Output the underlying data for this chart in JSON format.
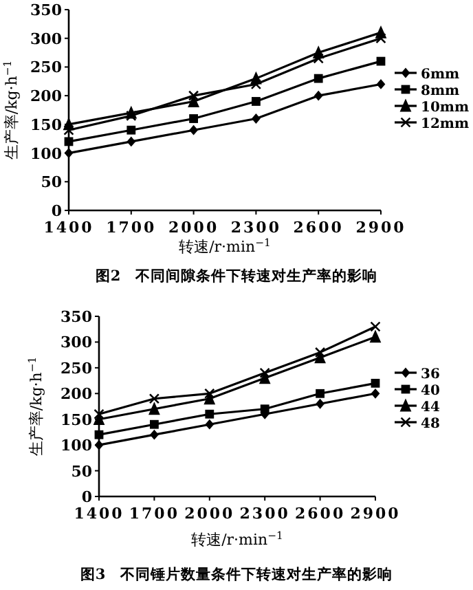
{
  "chart_data": [
    {
      "type": "line",
      "title": "图2　不同间隙条件下转速对生产率的影响",
      "xlabel": "转速/r·min$^{−1}$",
      "ylabel": "生产率/kg·h$^{−1}$",
      "categories": [
        "1400",
        "1700",
        "2000",
        "2300",
        "2600",
        "2900"
      ],
      "ylim": [
        0,
        350
      ],
      "yticks": [
        0,
        50,
        100,
        150,
        200,
        250,
        300,
        350
      ],
      "legend": "right",
      "grid": false,
      "line_style": "solid",
      "series": [
        {
          "name": "6mm",
          "color": "#000000",
          "marker": "diamond",
          "values": [
            100,
            120,
            140,
            160,
            200,
            220
          ]
        },
        {
          "name": "8mm",
          "color": "#000000",
          "marker": "square",
          "values": [
            120,
            140,
            160,
            190,
            230,
            260
          ]
        },
        {
          "name": "10mm",
          "color": "#000000",
          "marker": "triangle",
          "values": [
            150,
            170,
            190,
            230,
            275,
            310
          ]
        },
        {
          "name": "12mm",
          "color": "#000000",
          "marker": "cross",
          "values": [
            140,
            165,
            200,
            220,
            265,
            300
          ]
        }
      ]
    },
    {
      "type": "line",
      "title": "图3　不同锤片数量条件下转速对生产率的影响",
      "xlabel": "转速/r·min$^{−1}$",
      "ylabel": "生产率/kg·h$^{−1}$",
      "categories": [
        "1400",
        "1700",
        "2000",
        "2300",
        "2600",
        "2900"
      ],
      "ylim": [
        0,
        350
      ],
      "yticks": [
        0,
        50,
        100,
        150,
        200,
        250,
        300,
        350
      ],
      "legend": "right",
      "grid": false,
      "line_style": "solid",
      "series": [
        {
          "name": "36",
          "color": "#000000",
          "marker": "diamond",
          "values": [
            100,
            120,
            140,
            160,
            180,
            200
          ]
        },
        {
          "name": "40",
          "color": "#000000",
          "marker": "square",
          "values": [
            120,
            140,
            160,
            170,
            200,
            220
          ]
        },
        {
          "name": "44",
          "color": "#000000",
          "marker": "triangle",
          "values": [
            150,
            170,
            190,
            230,
            270,
            310
          ]
        },
        {
          "name": "48",
          "color": "#000000",
          "marker": "cross",
          "values": [
            160,
            190,
            200,
            240,
            280,
            330
          ]
        }
      ]
    }
  ]
}
